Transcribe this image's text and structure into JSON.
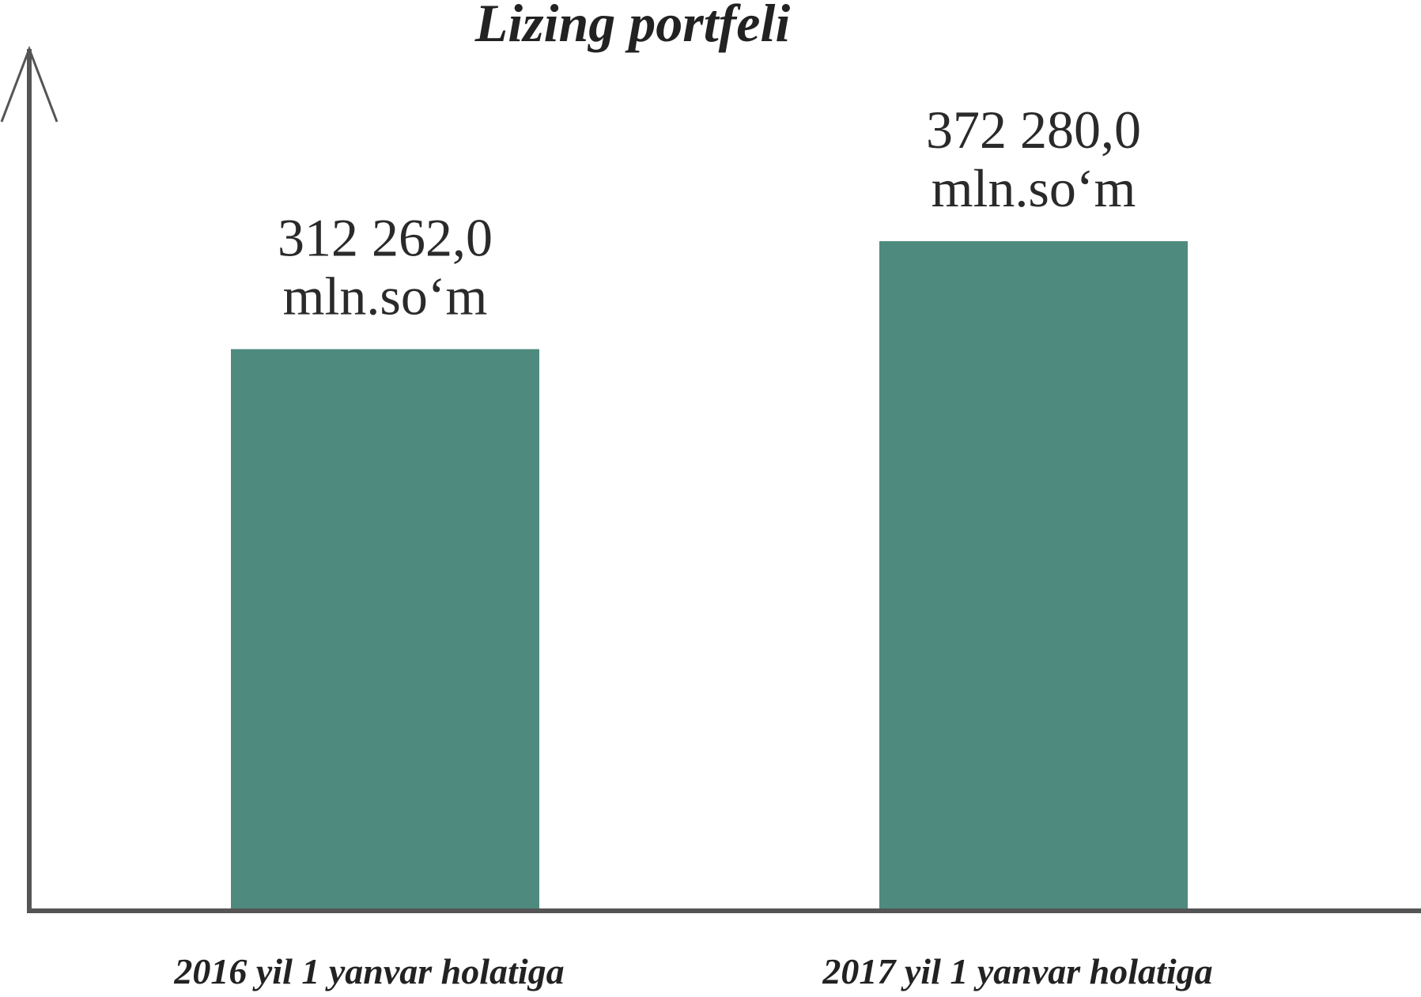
{
  "chart_data": {
    "type": "bar",
    "title": "Lizing portfeli",
    "categories": [
      "2016 yil 1 yanvar holatiga",
      "2017 yil 1 yanvar holatiga"
    ],
    "values": [
      312262.0,
      372280.0
    ],
    "value_labels": [
      [
        "312 262,0",
        "mln.so‘m"
      ],
      [
        "372 280,0",
        "mln.so‘m"
      ]
    ],
    "unit": "mln.so‘m",
    "xlabel": "",
    "ylabel": "",
    "ylim": [
      0,
      480000
    ],
    "grid": false,
    "legend": "none",
    "bar_color": "#4e8a7e",
    "axis_color": "#555555"
  }
}
